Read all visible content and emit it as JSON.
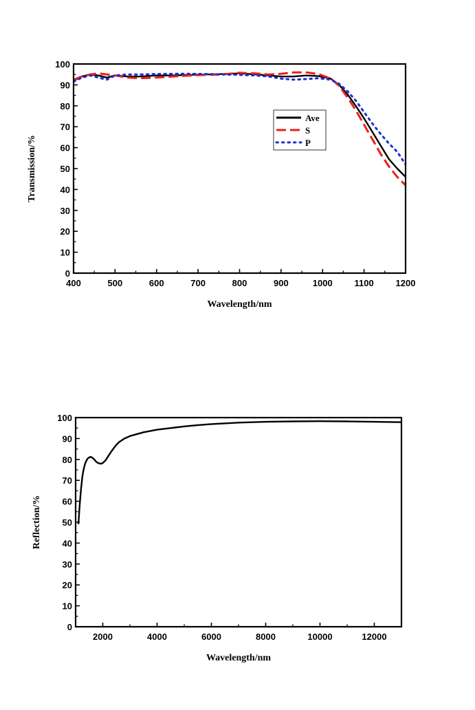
{
  "chart_data": [
    {
      "type": "line",
      "title": "",
      "xlabel": "Wavelength/nm",
      "ylabel": "Transmission/%",
      "xlim": [
        400,
        1200
      ],
      "ylim": [
        0,
        100
      ],
      "xticks": [
        400,
        500,
        600,
        700,
        800,
        900,
        1000,
        1100,
        1200
      ],
      "yticks": [
        0,
        10,
        20,
        30,
        40,
        50,
        60,
        70,
        80,
        90,
        100
      ],
      "legend_position": "center-right",
      "series": [
        {
          "name": "Ave",
          "color": "#000000",
          "dash": "solid",
          "x": [
            400,
            420,
            440,
            460,
            480,
            500,
            530,
            560,
            600,
            640,
            680,
            720,
            760,
            800,
            840,
            870,
            900,
            930,
            960,
            990,
            1020,
            1040,
            1060,
            1080,
            1100,
            1120,
            1140,
            1160,
            1180,
            1200
          ],
          "y": [
            92,
            94,
            95,
            94.5,
            93.5,
            94.5,
            94,
            94,
            94.5,
            94.5,
            94.8,
            95,
            95.2,
            95.5,
            95,
            94.5,
            94,
            94,
            94.5,
            94.2,
            93,
            90,
            85.5,
            80,
            74,
            67.5,
            61,
            54.5,
            50,
            46
          ]
        },
        {
          "name": "S",
          "color": "#e8201c",
          "dash": "dashed",
          "x": [
            400,
            420,
            440,
            460,
            480,
            500,
            530,
            560,
            600,
            640,
            680,
            720,
            760,
            800,
            840,
            870,
            900,
            930,
            960,
            990,
            1020,
            1040,
            1060,
            1080,
            1100,
            1120,
            1140,
            1160,
            1180,
            1200
          ],
          "y": [
            92.5,
            94,
            95,
            95.5,
            95,
            94.5,
            93.5,
            93.2,
            93.5,
            94,
            94.5,
            94.8,
            95,
            95.8,
            95.5,
            95,
            95.3,
            96,
            96,
            95.2,
            93,
            89.5,
            84,
            78,
            71,
            64,
            57,
            51,
            46,
            42
          ]
        },
        {
          "name": "P",
          "color": "#1a2fd6",
          "dash": "dotted",
          "x": [
            400,
            420,
            440,
            460,
            480,
            500,
            530,
            560,
            600,
            640,
            680,
            720,
            760,
            800,
            840,
            870,
            900,
            930,
            960,
            990,
            1020,
            1040,
            1060,
            1080,
            1100,
            1120,
            1140,
            1160,
            1180,
            1200
          ],
          "y": [
            91.5,
            93.5,
            94.5,
            93.5,
            92.5,
            94.5,
            95,
            95,
            95.2,
            95.3,
            95.3,
            95.2,
            95,
            94.8,
            94.5,
            94,
            93,
            92.5,
            92.8,
            93.2,
            92.5,
            90.5,
            87,
            82.5,
            77,
            71.5,
            66.5,
            62,
            58,
            52
          ]
        }
      ]
    },
    {
      "type": "line",
      "title": "",
      "xlabel": "Wavelength/nm",
      "ylabel": "Reflection/%",
      "xlim": [
        1000,
        13000
      ],
      "ylim": [
        0,
        100
      ],
      "xticks": [
        2000,
        4000,
        6000,
        8000,
        10000,
        12000
      ],
      "yticks": [
        0,
        10,
        20,
        30,
        40,
        50,
        60,
        70,
        80,
        90,
        100
      ],
      "series": [
        {
          "name": "",
          "color": "#000000",
          "dash": "solid",
          "x": [
            1100,
            1150,
            1200,
            1250,
            1300,
            1350,
            1400,
            1450,
            1500,
            1550,
            1600,
            1650,
            1700,
            1750,
            1800,
            1850,
            1900,
            1950,
            2000,
            2100,
            2200,
            2300,
            2400,
            2500,
            2600,
            2800,
            3000,
            3500,
            4000,
            4500,
            5000,
            5500,
            6000,
            7000,
            8000,
            9000,
            10000,
            11000,
            12000,
            13000
          ],
          "y": [
            49,
            58,
            66,
            72,
            75.5,
            78,
            79.5,
            80.5,
            81,
            81.2,
            81,
            80.5,
            79.8,
            79,
            78.5,
            78.2,
            78,
            78,
            78.3,
            79.5,
            81.5,
            83.5,
            85.3,
            87,
            88.3,
            90,
            91.2,
            93,
            94.2,
            95,
            95.8,
            96.4,
            96.9,
            97.6,
            98,
            98.2,
            98.3,
            98.2,
            98,
            97.8
          ]
        }
      ]
    }
  ]
}
